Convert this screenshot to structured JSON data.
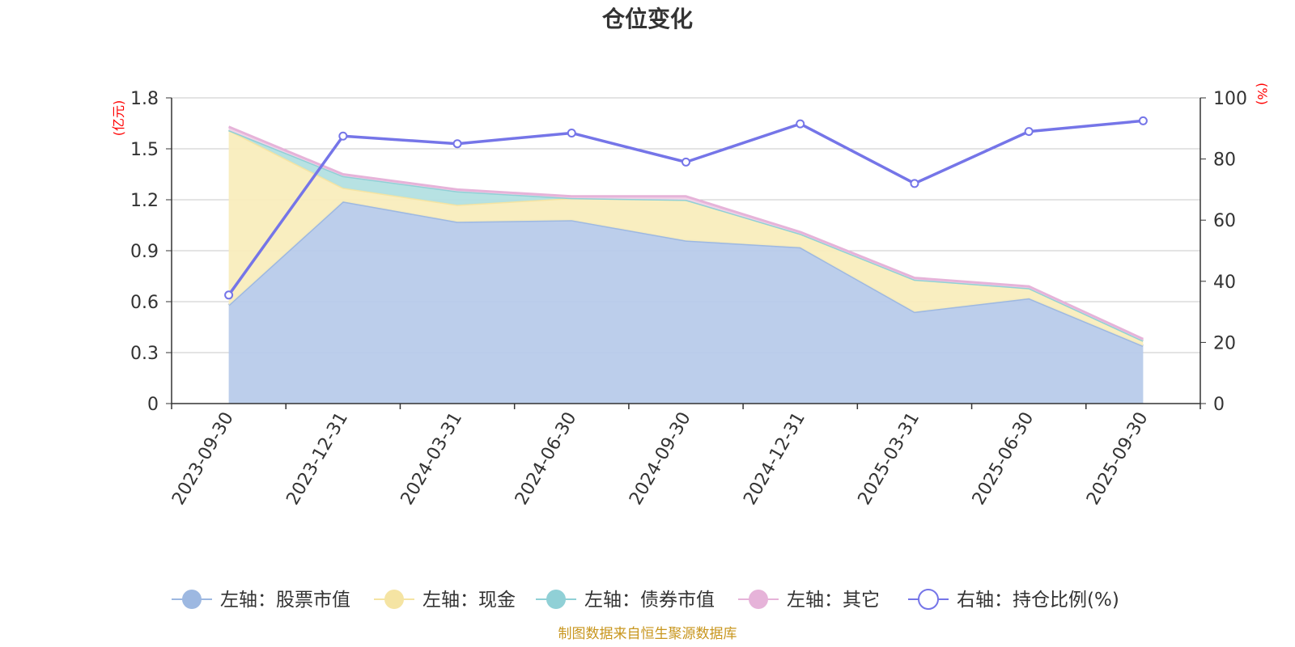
{
  "chart_data": {
    "type": "area",
    "title": "仓位变化",
    "source": "制图数据来自恒生聚源数据库",
    "left_axis": {
      "unit": "(亿元)",
      "range": [
        0,
        1.8
      ],
      "ticks": [
        "0",
        "0.3",
        "0.6",
        "0.9",
        "1.2",
        "1.5",
        "1.8"
      ]
    },
    "right_axis": {
      "unit": "(%)",
      "range": [
        0,
        100
      ],
      "ticks": [
        "0",
        "20",
        "40",
        "60",
        "80",
        "100"
      ]
    },
    "categories": [
      "2023-09-30",
      "2023-12-31",
      "2024-03-31",
      "2024-06-30",
      "2024-09-30",
      "2024-12-31",
      "2025-03-31",
      "2025-06-30",
      "2025-09-30"
    ],
    "series": [
      {
        "name": "左轴：股票市值",
        "axis": "left",
        "kind": "stacked-area",
        "color": "#9db8e1",
        "fill": "#b8cbea",
        "values": [
          0.58,
          1.19,
          1.07,
          1.08,
          0.96,
          0.92,
          0.54,
          0.62,
          0.34
        ]
      },
      {
        "name": "左轴：现金",
        "axis": "left",
        "kind": "stacked-area",
        "color": "#f5e4a3",
        "fill": "#f9edbd",
        "values": [
          1.03,
          0.08,
          0.1,
          0.13,
          0.24,
          0.08,
          0.19,
          0.06,
          0.03
        ]
      },
      {
        "name": "左轴：债券市值",
        "axis": "left",
        "kind": "stacked-area",
        "color": "#90d0d6",
        "fill": "#b3e0e1",
        "values": [
          0,
          0.07,
          0.08,
          0,
          0,
          0,
          0,
          0,
          0
        ]
      },
      {
        "name": "左轴：其它",
        "axis": "left",
        "kind": "stacked-area",
        "color": "#e6b3d9",
        "fill": "#f2d3e8",
        "values": [
          0.02,
          0.01,
          0.01,
          0.01,
          0.02,
          0.01,
          0.01,
          0.01,
          0.01
        ]
      },
      {
        "name": "右轴：持仓比例(%)",
        "axis": "right",
        "kind": "line",
        "color": "#7575e8",
        "values": [
          35.5,
          87.5,
          85,
          88.5,
          79,
          91.5,
          72,
          89,
          92.5
        ]
      }
    ]
  }
}
